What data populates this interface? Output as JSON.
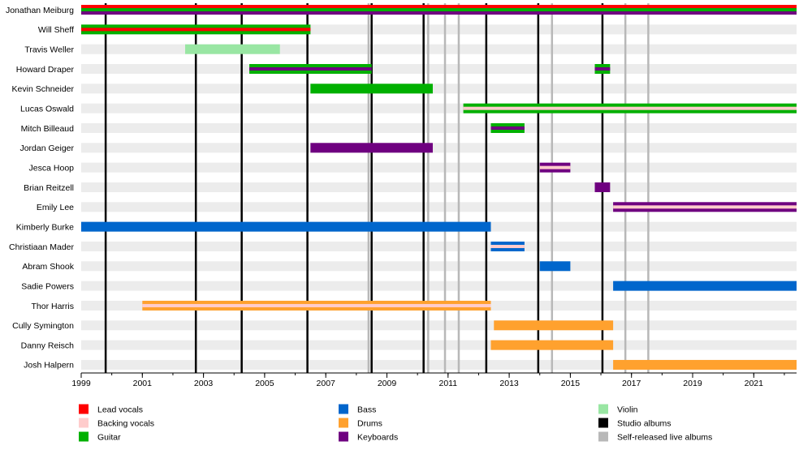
{
  "chart_data": {
    "type": "timeline",
    "title": "",
    "xlabel": "",
    "ylabel": "",
    "xlim": [
      1999,
      2022.4
    ],
    "x_ticks": [
      1999,
      2001,
      2003,
      2005,
      2007,
      2009,
      2011,
      2013,
      2015,
      2017,
      2019,
      2021
    ],
    "colors": {
      "Lead vocals": "#ff0000",
      "Backing vocals": "#ffcccc",
      "Guitar": "#00b000",
      "Bass": "#0066cc",
      "Drums": "#ffa12e",
      "Keyboards": "#6f0080",
      "Violin": "#99e6a3",
      "Studio albums": "#000000",
      "Self-released live albums": "#b8b8b8"
    },
    "members": [
      {
        "name": "Jonathan Meiburg",
        "bars": [
          {
            "from": 1999,
            "to": 2022.4,
            "roles": [
              "Lead vocals",
              "Guitar",
              "Keyboards"
            ]
          }
        ]
      },
      {
        "name": "Will Sheff",
        "bars": [
          {
            "from": 1999,
            "to": 2006.5,
            "roles": [
              "Guitar",
              "Lead vocals"
            ]
          }
        ]
      },
      {
        "name": "Travis Weller",
        "bars": [
          {
            "from": 2002.4,
            "to": 2005.5,
            "roles": [
              "Violin"
            ]
          }
        ]
      },
      {
        "name": "Howard Draper",
        "bars": [
          {
            "from": 2004.5,
            "to": 2008.5,
            "roles": [
              "Guitar",
              "Keyboards"
            ]
          },
          {
            "from": 2015.8,
            "to": 2016.3,
            "roles": [
              "Guitar",
              "Keyboards"
            ]
          }
        ]
      },
      {
        "name": "Kevin Schneider",
        "bars": [
          {
            "from": 2006.5,
            "to": 2010.5,
            "roles": [
              "Guitar"
            ]
          }
        ]
      },
      {
        "name": "Lucas Oswald",
        "bars": [
          {
            "from": 2011.5,
            "to": 2022.4,
            "roles": [
              "Guitar",
              "Backing vocals"
            ]
          }
        ]
      },
      {
        "name": "Mitch Billeaud",
        "bars": [
          {
            "from": 2012.4,
            "to": 2013.5,
            "roles": [
              "Guitar",
              "Keyboards"
            ]
          }
        ]
      },
      {
        "name": "Jordan Geiger",
        "bars": [
          {
            "from": 2006.5,
            "to": 2010.5,
            "roles": [
              "Keyboards"
            ]
          }
        ]
      },
      {
        "name": "Jesca Hoop",
        "bars": [
          {
            "from": 2014.0,
            "to": 2015.0,
            "roles": [
              "Keyboards",
              "Backing vocals"
            ]
          }
        ]
      },
      {
        "name": "Brian Reitzell",
        "bars": [
          {
            "from": 2015.8,
            "to": 2016.3,
            "roles": [
              "Keyboards"
            ]
          }
        ]
      },
      {
        "name": "Emily Lee",
        "bars": [
          {
            "from": 2016.4,
            "to": 2022.4,
            "roles": [
              "Keyboards",
              "Backing vocals"
            ]
          }
        ]
      },
      {
        "name": "Kimberly Burke",
        "bars": [
          {
            "from": 1999,
            "to": 2012.4,
            "roles": [
              "Bass"
            ]
          }
        ]
      },
      {
        "name": "Christiaan Mader",
        "bars": [
          {
            "from": 2012.4,
            "to": 2013.5,
            "roles": [
              "Bass",
              "Backing vocals"
            ]
          }
        ]
      },
      {
        "name": "Abram Shook",
        "bars": [
          {
            "from": 2014.0,
            "to": 2015.0,
            "roles": [
              "Bass"
            ]
          }
        ]
      },
      {
        "name": "Sadie Powers",
        "bars": [
          {
            "from": 2016.4,
            "to": 2022.4,
            "roles": [
              "Bass"
            ]
          }
        ]
      },
      {
        "name": "Thor Harris",
        "bars": [
          {
            "from": 2001.0,
            "to": 2012.4,
            "roles": [
              "Drums",
              "Backing vocals"
            ]
          }
        ]
      },
      {
        "name": "Cully Symington",
        "bars": [
          {
            "from": 2012.5,
            "to": 2016.4,
            "roles": [
              "Drums"
            ]
          }
        ]
      },
      {
        "name": "Danny Reisch",
        "bars": [
          {
            "from": 2012.4,
            "to": 2016.4,
            "roles": [
              "Drums"
            ]
          }
        ]
      },
      {
        "name": "Josh Halpern",
        "bars": [
          {
            "from": 2016.4,
            "to": 2022.4,
            "roles": [
              "Drums"
            ]
          }
        ]
      }
    ],
    "studio_albums": [
      1999.8,
      2002.75,
      2004.25,
      2006.4,
      2008.5,
      2010.2,
      2012.25,
      2013.95,
      2016.05
    ],
    "live_albums": [
      2008.4,
      2010.35,
      2010.9,
      2011.35,
      2014.4,
      2016.8,
      2017.55
    ],
    "legend": [
      [
        "Lead vocals",
        "Backing vocals",
        "Guitar"
      ],
      [
        "Bass",
        "Drums",
        "Keyboards"
      ],
      [
        "Violin",
        "Studio albums",
        "Self-released live albums"
      ]
    ]
  }
}
